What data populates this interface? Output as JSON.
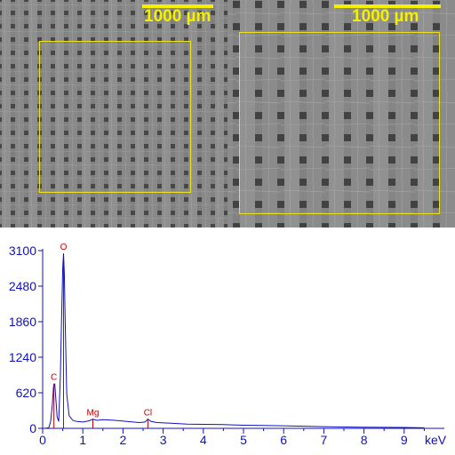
{
  "micrographs": [
    {
      "scale_label": "1000 µm"
    },
    {
      "scale_label": "1000 µm"
    }
  ],
  "colors": {
    "scale": "#f5f000",
    "spectrum_line": "#1010c0",
    "axis": "#1010c0",
    "element_marker": "#c00000"
  },
  "chart_data": {
    "type": "line",
    "x_unit": "keV",
    "xlim": [
      0,
      10
    ],
    "ylim": [
      0,
      3100
    ],
    "x_ticks": [
      0,
      1,
      2,
      3,
      4,
      5,
      6,
      7,
      8,
      9
    ],
    "y_ticks": [
      0,
      620,
      1240,
      1860,
      2480,
      3100
    ],
    "elements": [
      {
        "symbol": "C",
        "energy": 0.28
      },
      {
        "symbol": "O",
        "energy": 0.52
      },
      {
        "symbol": "Mg",
        "energy": 1.25
      },
      {
        "symbol": "Cl",
        "energy": 2.62
      }
    ],
    "series": [
      {
        "x": [
          0.05,
          0.15,
          0.2,
          0.24,
          0.27,
          0.3,
          0.33,
          0.36,
          0.4,
          0.44,
          0.47,
          0.5,
          0.52,
          0.54,
          0.56,
          0.6,
          0.66,
          0.75,
          0.85,
          1.0,
          1.15,
          1.25,
          1.35,
          1.5,
          1.8,
          2.1,
          2.4,
          2.55,
          2.62,
          2.7,
          2.85,
          3.2,
          3.6,
          4.0,
          4.5,
          5.0,
          5.5,
          6.0,
          7.0,
          8.0,
          9.0,
          9.5
        ],
        "y": [
          0,
          10,
          120,
          400,
          720,
          780,
          500,
          200,
          120,
          900,
          1850,
          2800,
          3050,
          2700,
          1900,
          600,
          220,
          140,
          120,
          110,
          130,
          160,
          140,
          150,
          140,
          120,
          100,
          110,
          160,
          120,
          100,
          90,
          75,
          70,
          65,
          55,
          50,
          45,
          30,
          20,
          15,
          10
        ]
      }
    ]
  }
}
